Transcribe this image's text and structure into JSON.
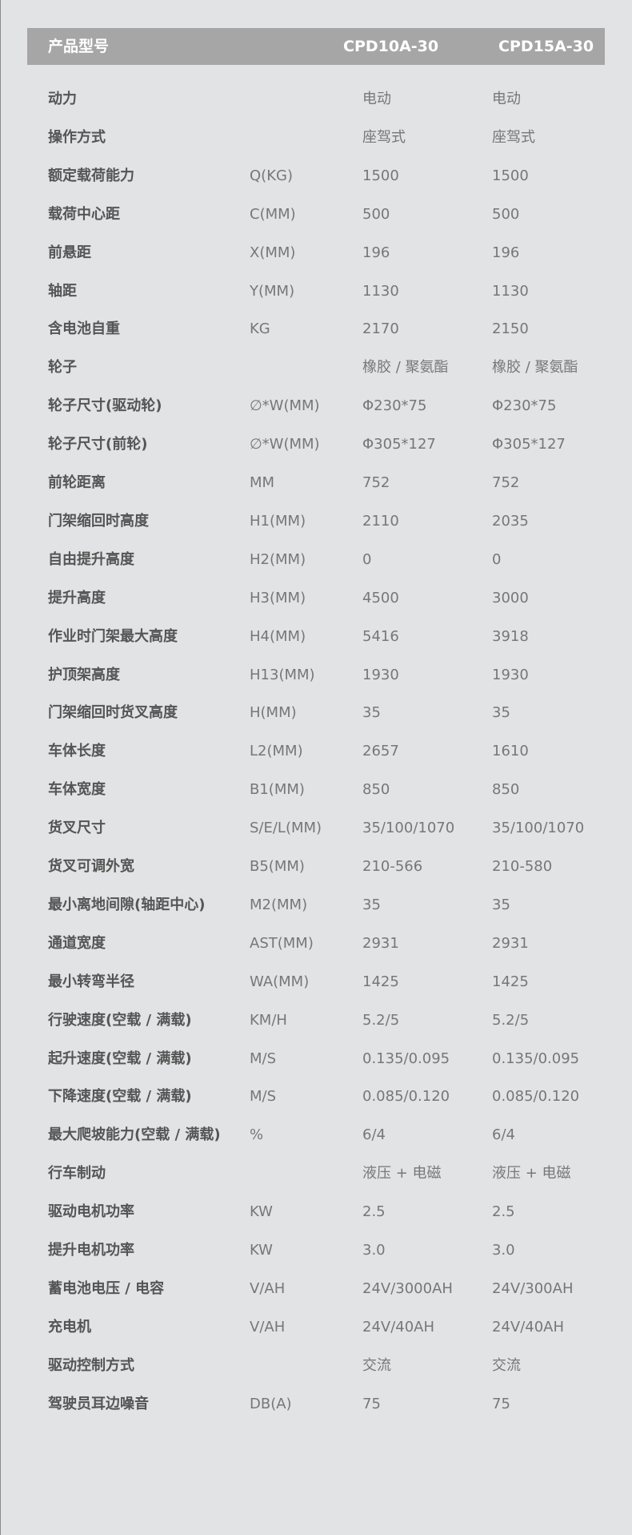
{
  "header": {
    "label": "产品型号",
    "models": [
      "CPD10A-30",
      "CPD15A-30"
    ]
  },
  "rows": [
    {
      "label": "动力",
      "unit": "",
      "v1": "电动",
      "v2": "电动"
    },
    {
      "label": "操作方式",
      "unit": "",
      "v1": "座驾式",
      "v2": "座驾式"
    },
    {
      "label": "额定载荷能力",
      "unit": "Q(KG)",
      "v1": "1500",
      "v2": "1500"
    },
    {
      "label": "载荷中心距",
      "unit": "C(MM)",
      "v1": "500",
      "v2": "500"
    },
    {
      "label": "前悬距",
      "unit": "X(MM)",
      "v1": "196",
      "v2": "196"
    },
    {
      "label": "轴距",
      "unit": "Y(MM)",
      "v1": "1130",
      "v2": "1130"
    },
    {
      "label": "含电池自重",
      "unit": "KG",
      "v1": "2170",
      "v2": "2150"
    },
    {
      "label": "轮子",
      "unit": "",
      "v1": "橡胶 / 聚氨酯",
      "v2": "橡胶 / 聚氨酯"
    },
    {
      "label": "轮子尺寸(驱动轮)",
      "unit": "∅*W(MM)",
      "v1": "Φ230*75",
      "v2": "Φ230*75"
    },
    {
      "label": "轮子尺寸(前轮)",
      "unit": "∅*W(MM)",
      "v1": "Φ305*127",
      "v2": "Φ305*127"
    },
    {
      "label": "前轮距离",
      "unit": "MM",
      "v1": "752",
      "v2": "752"
    },
    {
      "label": "门架缩回时高度",
      "unit": "H1(MM)",
      "v1": "2110",
      "v2": "2035"
    },
    {
      "label": "自由提升高度",
      "unit": "H2(MM)",
      "v1": "0",
      "v2": "0"
    },
    {
      "label": "提升高度",
      "unit": "H3(MM)",
      "v1": "4500",
      "v2": "3000"
    },
    {
      "label": "作业时门架最大高度",
      "unit": "H4(MM)",
      "v1": "5416",
      "v2": "3918"
    },
    {
      "label": "护顶架高度",
      "unit": "H13(MM)",
      "v1": "1930",
      "v2": "1930"
    },
    {
      "label": "门架缩回时货叉高度",
      "unit": "H(MM)",
      "v1": "35",
      "v2": "35"
    },
    {
      "label": "车体长度",
      "unit": "L2(MM)",
      "v1": "2657",
      "v2": "1610"
    },
    {
      "label": "车体宽度",
      "unit": "B1(MM)",
      "v1": "850",
      "v2": "850"
    },
    {
      "label": "货叉尺寸",
      "unit": "S/E/L(MM)",
      "v1": "35/100/1070",
      "v2": "35/100/1070"
    },
    {
      "label": "货叉可调外宽",
      "unit": "B5(MM)",
      "v1": "210-566",
      "v2": "210-580"
    },
    {
      "label": "最小离地间隙(轴距中心)",
      "unit": "M2(MM)",
      "v1": "35",
      "v2": "35"
    },
    {
      "label": "通道宽度",
      "unit": "AST(MM)",
      "v1": "2931",
      "v2": "2931"
    },
    {
      "label": "最小转弯半径",
      "unit": "WA(MM)",
      "v1": "1425",
      "v2": "1425"
    },
    {
      "label": "行驶速度(空载 / 满载)",
      "unit": "KM/H",
      "v1": "5.2/5",
      "v2": "5.2/5"
    },
    {
      "label": "起升速度(空载 / 满载)",
      "unit": "M/S",
      "v1": "0.135/0.095",
      "v2": "0.135/0.095"
    },
    {
      "label": "下降速度(空载 / 满载)",
      "unit": "M/S",
      "v1": "0.085/0.120",
      "v2": "0.085/0.120"
    },
    {
      "label": "最大爬坡能力(空载 / 满载)",
      "unit": "%",
      "v1": "6/4",
      "v2": "6/4"
    },
    {
      "label": "行车制动",
      "unit": "",
      "v1": "液压 + 电磁",
      "v2": "液压 + 电磁"
    },
    {
      "label": "驱动电机功率",
      "unit": "KW",
      "v1": "2.5",
      "v2": "2.5"
    },
    {
      "label": "提升电机功率",
      "unit": "KW",
      "v1": "3.0",
      "v2": "3.0"
    },
    {
      "label": "蓄电池电压 / 电容",
      "unit": "V/AH",
      "v1": "24V/3000AH",
      "v2": "24V/300AH"
    },
    {
      "label": "充电机",
      "unit": "V/AH",
      "v1": "24V/40AH",
      "v2": "24V/40AH"
    },
    {
      "label": "驱动控制方式",
      "unit": "",
      "v1": "交流",
      "v2": "交流"
    },
    {
      "label": "驾驶员耳边噪音",
      "unit": "DB(A)",
      "v1": "75",
      "v2": "75"
    }
  ]
}
